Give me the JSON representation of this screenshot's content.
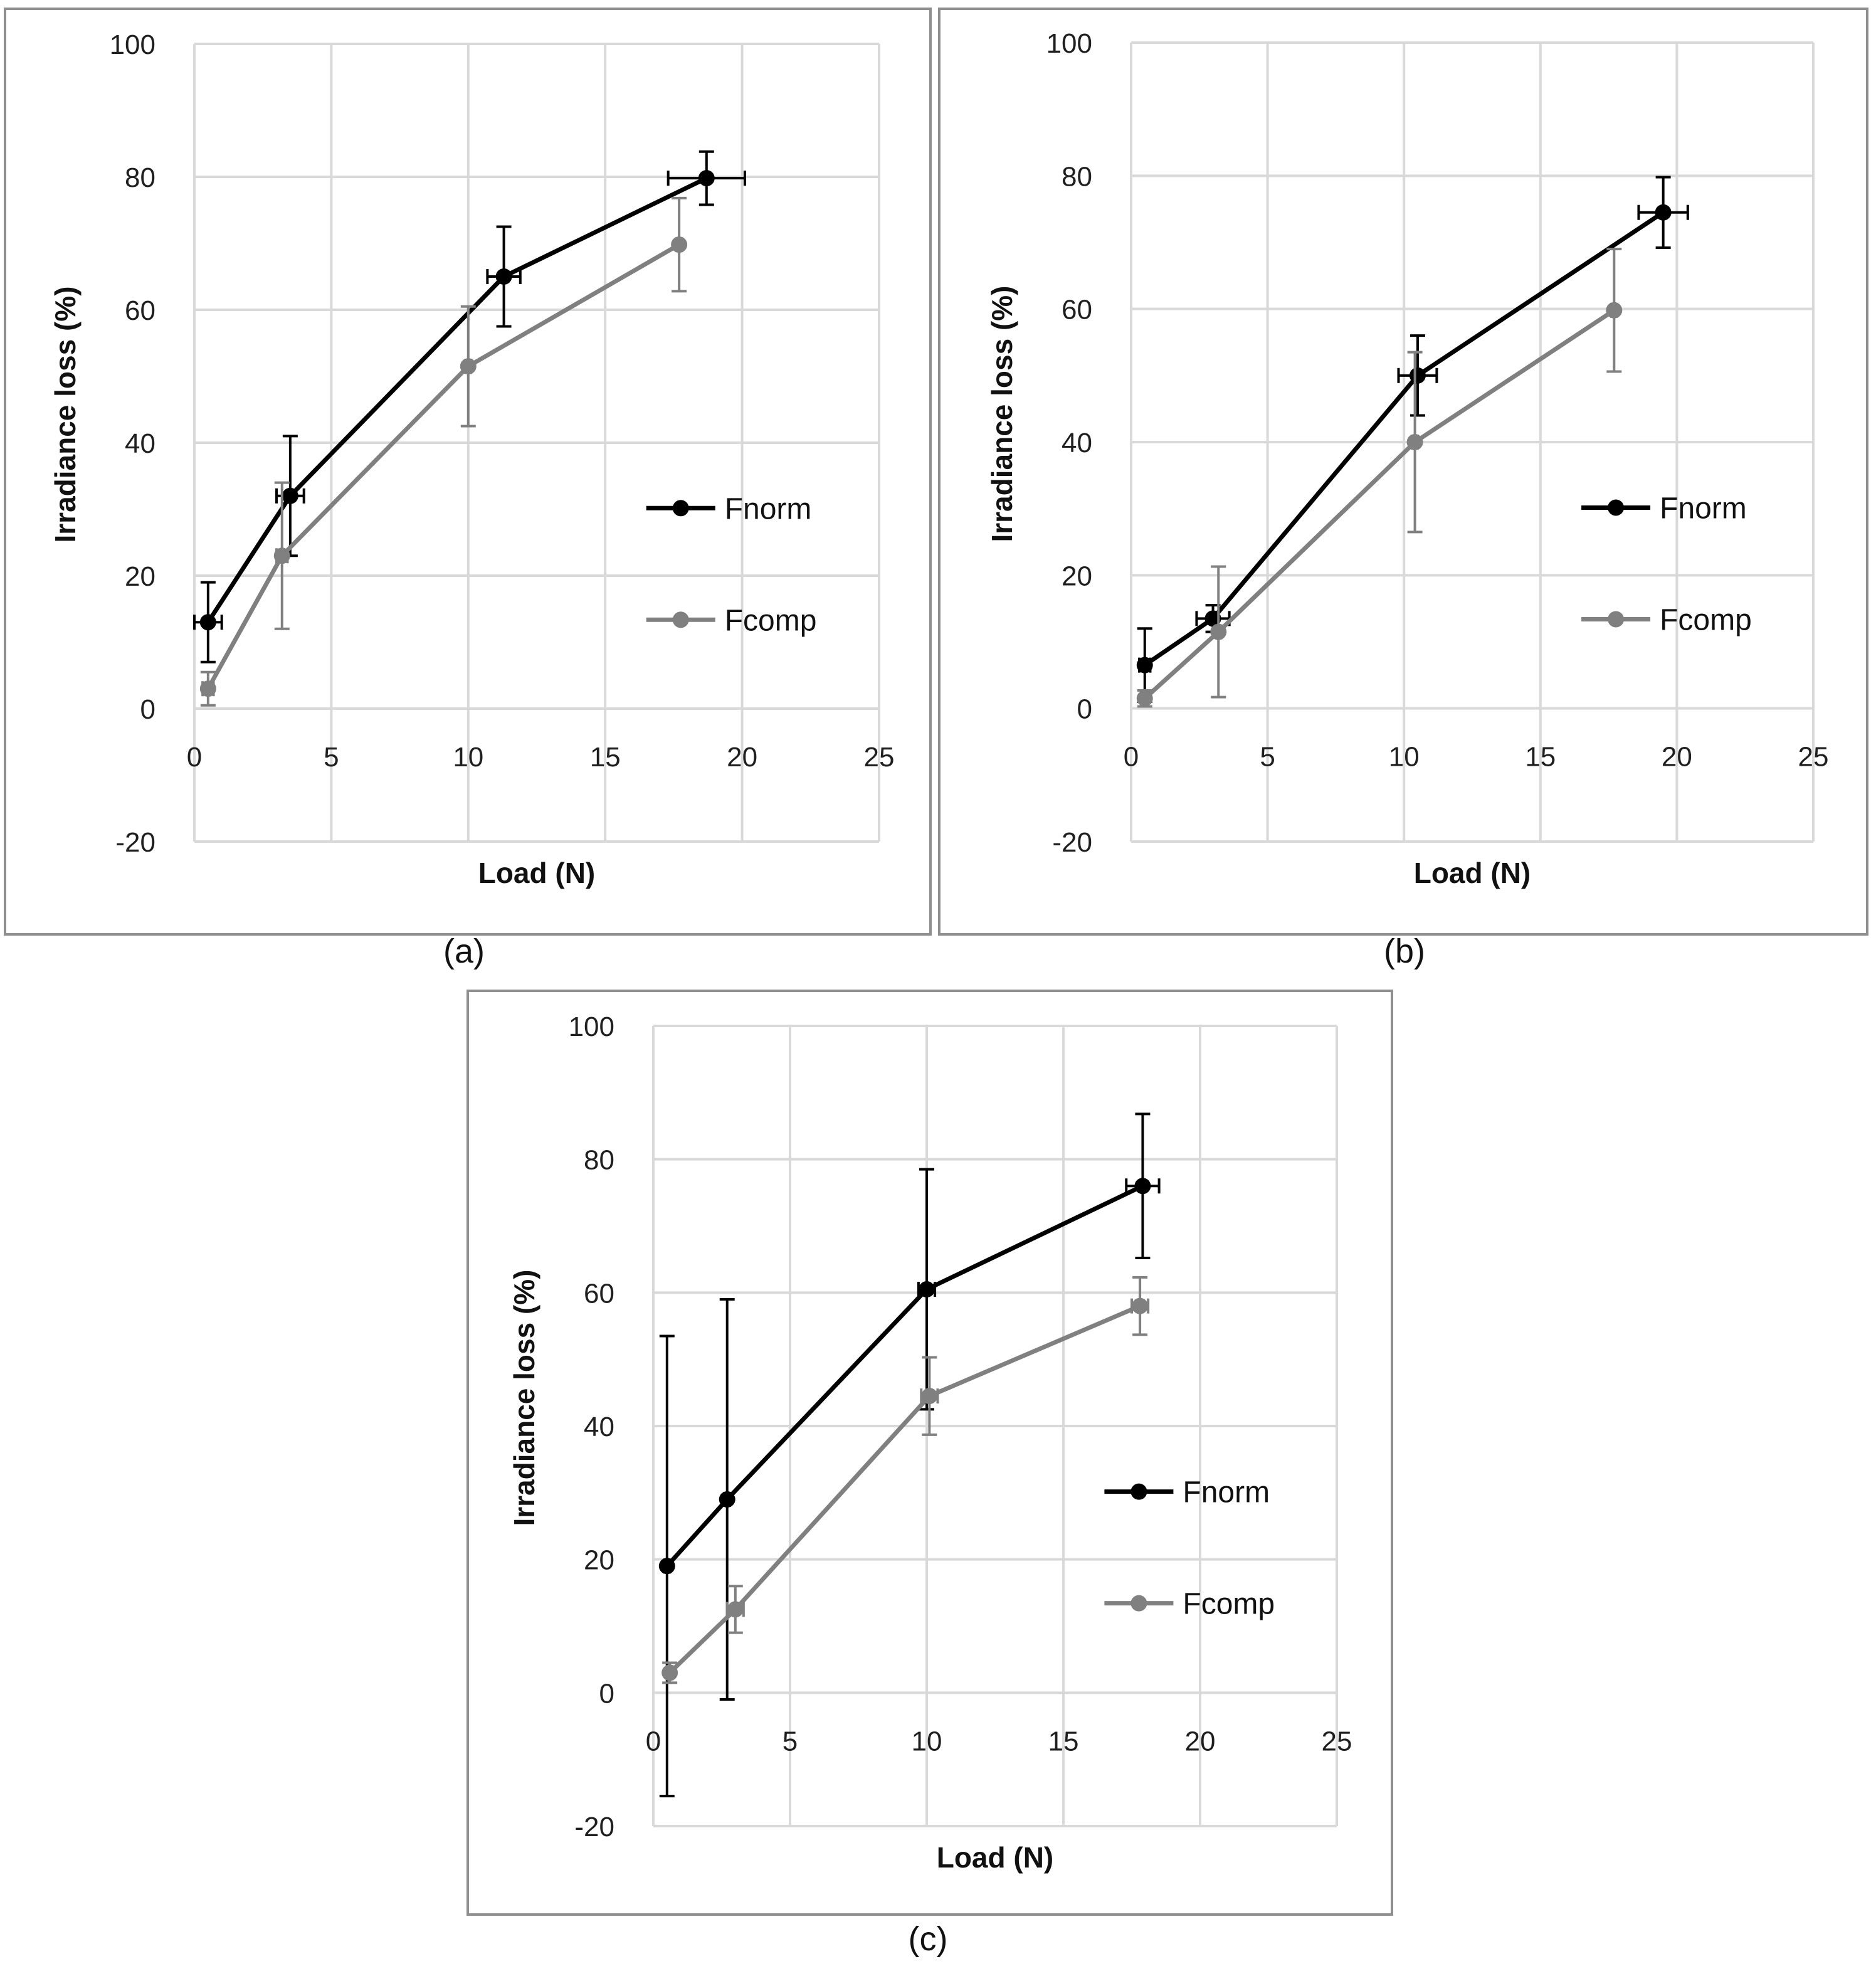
{
  "figure": {
    "background": "#ffffff",
    "frame_color": "#8f8f8f",
    "grid_color": "#d9d9d9"
  },
  "chart_data": [
    {
      "id": "a",
      "caption": "(a)",
      "type": "line",
      "xlabel": "Load (N)",
      "ylabel": "Irradiance loss (%)",
      "xlim": [
        0,
        25
      ],
      "ylim": [
        -20,
        100
      ],
      "xticks": [
        0,
        5,
        10,
        15,
        20,
        25
      ],
      "yticks": [
        -20,
        0,
        20,
        40,
        60,
        80,
        100
      ],
      "grid": true,
      "legend_position": "right-middle",
      "series": [
        {
          "name": "Fnorm",
          "color": "#000000",
          "x": [
            0.5,
            3.5,
            11.3,
            18.7
          ],
          "y": [
            13.0,
            32.0,
            65.0,
            79.8
          ],
          "x_err": [
            0.5,
            0.5,
            0.6,
            1.4
          ],
          "y_err": [
            6.0,
            9.0,
            7.5,
            4.0
          ]
        },
        {
          "name": "Fcomp",
          "color": "#808080",
          "x": [
            0.5,
            3.2,
            10.0,
            17.7
          ],
          "y": [
            3.0,
            23.0,
            51.5,
            69.8
          ],
          "x_err": [
            0.2,
            0.2,
            0.1,
            0.1
          ],
          "y_err": [
            2.5,
            11.0,
            9.0,
            7.0
          ]
        }
      ]
    },
    {
      "id": "b",
      "caption": "(b)",
      "type": "line",
      "xlabel": "Load (N)",
      "ylabel": "Irradiance loss (%)",
      "xlim": [
        0,
        25
      ],
      "ylim": [
        -20,
        100
      ],
      "xticks": [
        0,
        5,
        10,
        15,
        20,
        25
      ],
      "yticks": [
        -20,
        0,
        20,
        40,
        60,
        80,
        100
      ],
      "grid": true,
      "legend_position": "right-middle",
      "series": [
        {
          "name": "Fnorm",
          "color": "#000000",
          "x": [
            0.5,
            3.0,
            10.5,
            19.5
          ],
          "y": [
            6.5,
            13.5,
            50.0,
            74.5
          ],
          "x_err": [
            0.2,
            0.6,
            0.7,
            0.9
          ],
          "y_err": [
            5.5,
            2.0,
            6.0,
            5.3
          ]
        },
        {
          "name": "Fcomp",
          "color": "#808080",
          "x": [
            0.5,
            3.2,
            10.4,
            17.7
          ],
          "y": [
            1.5,
            11.5,
            40.0,
            59.8
          ],
          "x_err": [
            0.1,
            0.1,
            0.1,
            0.1
          ],
          "y_err": [
            1.2,
            9.8,
            13.5,
            9.2
          ]
        }
      ]
    },
    {
      "id": "c",
      "caption": "(c)",
      "type": "line",
      "xlabel": "Load (N)",
      "ylabel": "Irradiance loss (%)",
      "xlim": [
        0,
        25
      ],
      "ylim": [
        -20,
        100
      ],
      "xticks": [
        0,
        5,
        10,
        15,
        20,
        25
      ],
      "yticks": [
        -20,
        0,
        20,
        40,
        60,
        80,
        100
      ],
      "grid": true,
      "legend_position": "right-middle",
      "series": [
        {
          "name": "Fnorm",
          "color": "#000000",
          "x": [
            0.5,
            2.7,
            10.0,
            17.9
          ],
          "y": [
            19.0,
            29.0,
            60.5,
            76.0
          ],
          "x_err": [
            0.1,
            0.1,
            0.3,
            0.6
          ],
          "y_err": [
            34.5,
            30.0,
            18.0,
            10.8
          ]
        },
        {
          "name": "Fcomp",
          "color": "#808080",
          "x": [
            0.6,
            3.0,
            10.1,
            17.8
          ],
          "y": [
            3.0,
            12.5,
            44.5,
            58.0
          ],
          "x_err": [
            0.1,
            0.3,
            0.3,
            0.3
          ],
          "y_err": [
            1.5,
            3.5,
            5.8,
            4.3
          ]
        }
      ]
    }
  ]
}
